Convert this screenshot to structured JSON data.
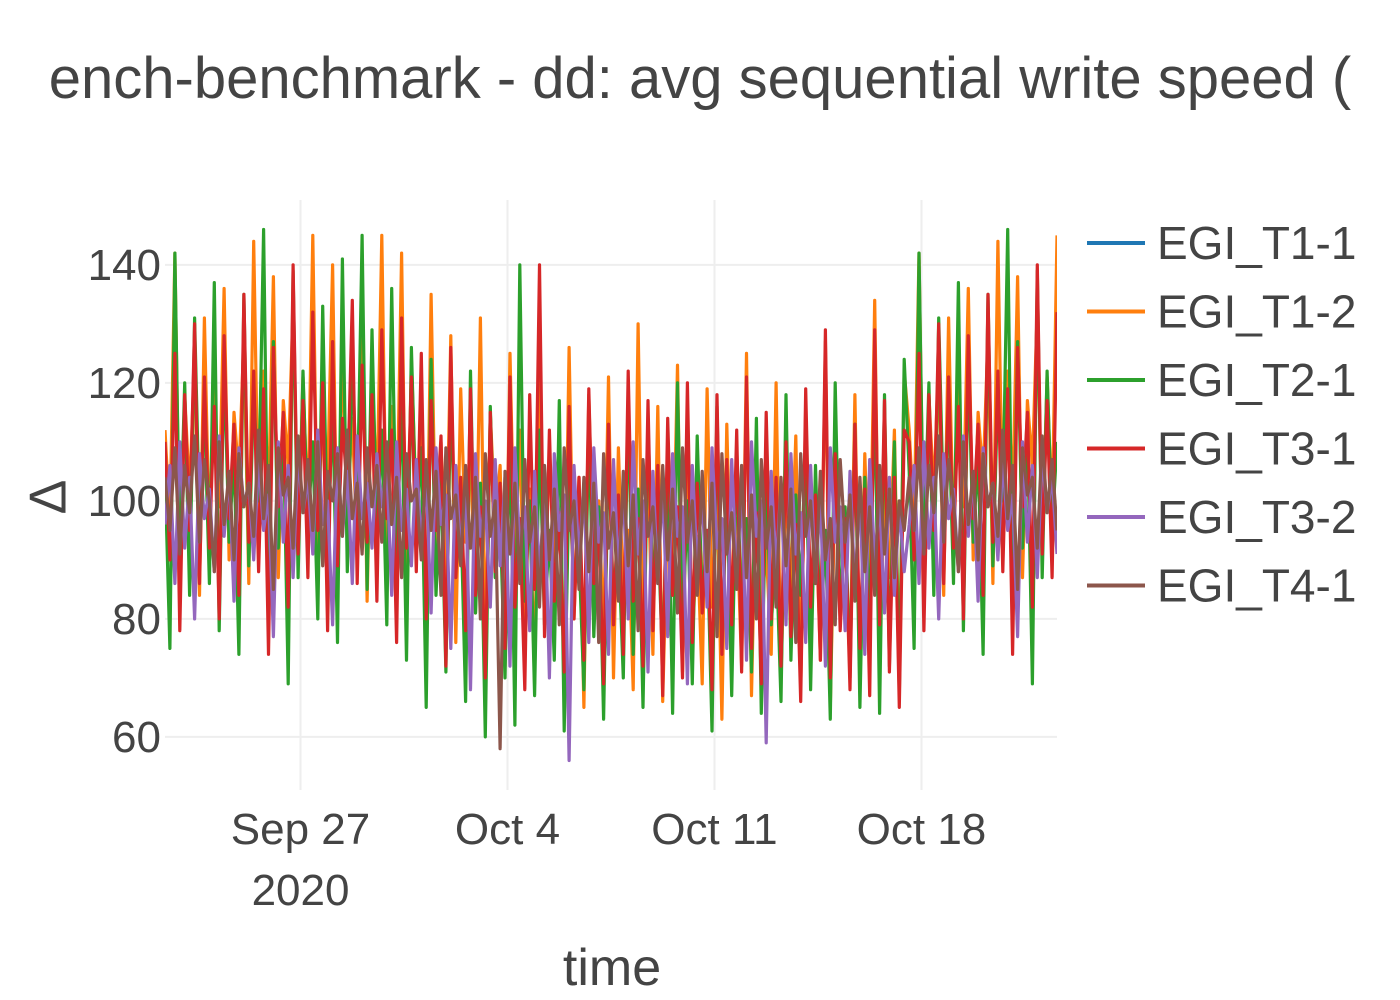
{
  "chart_data": {
    "type": "line",
    "title": "ench-benchmark - dd: avg sequential write speed (",
    "xlabel": "time",
    "ylabel": "Δ",
    "x_ticks": [
      "Sep 27",
      "Oct 4",
      "Oct 11",
      "Oct 18"
    ],
    "x_tick_year": "2020",
    "x_tick_dates": [
      "2020-09-27",
      "2020-10-04",
      "2020-10-11",
      "2020-10-18"
    ],
    "xlim": [
      "2020-09-22T10:00",
      "2020-10-22T14:00"
    ],
    "y_ticks": [
      60,
      80,
      100,
      120,
      140
    ],
    "ylim": [
      51,
      151
    ],
    "grid": true,
    "legend_position": "right",
    "sample_interval_hours": 4,
    "series": [
      {
        "name": "EGI_T1-1",
        "color": "#1f77b4",
        "visible_values": false,
        "values": [
          100,
          101,
          99,
          100,
          102,
          98,
          100,
          101,
          99,
          100,
          101,
          100
        ]
      },
      {
        "name": "EGI_T1-2",
        "color": "#ff7f0e",
        "values": [
          112,
          96,
          142,
          88,
          118,
          101,
          125,
          84,
          131,
          93,
          120,
          99,
          136,
          90,
          115,
          104,
          128,
          86,
          144,
          95,
          122,
          100,
          138,
          87,
          117,
          106,
          133,
          92,
          121,
          97,
          145,
          89,
          119,
          103,
          140,
          85,
          126,
          98,
          114,
          91,
          137,
          83,
          123,
          100,
          145,
          88,
          116,
          94,
          142,
          82,
          124,
          99,
          113,
          79,
          135,
          90,
          110,
          86,
          128,
          76,
          119,
          93,
          108,
          81,
          131,
          74,
          115,
          96,
          106,
          72,
          125,
          87,
          112,
          78,
          102,
          69,
          128,
          84,
          108,
          90,
          98,
          73,
          126,
          80,
          104,
          65,
          118,
          86,
          100,
          77,
          121,
          70,
          109,
          83,
          95,
          68,
          130,
          79,
          105,
          74,
          116,
          66,
          99,
          84,
          123,
          71,
          108,
          76,
          94,
          69,
          119,
          82,
          101,
          63,
          113,
          78,
          97,
          72,
          125,
          67,
          106,
          81,
          92,
          74,
          120,
          70,
          103,
          85,
          111,
          68,
          116,
          77,
          99,
          73,
          127,
          65,
          104,
          80,
          95,
          71,
          118,
          69,
          108,
          82,
          134,
          75,
          101,
          87,
          112,
          70,
          122
        ]
      },
      {
        "name": "EGI_T2-1",
        "color": "#2ca02c",
        "values": [
          105,
          75,
          142,
          90,
          120,
          84,
          131,
          97,
          116,
          86,
          137,
          78,
          124,
          93,
          108,
          74,
          135,
          89,
          119,
          100,
          146,
          83,
          127,
          92,
          113,
          69,
          139,
          87,
          122,
          95,
          110,
          80,
          133,
          91,
          117,
          76,
          141,
          88,
          125,
          98,
          145,
          85,
          129,
          94,
          112,
          79,
          136,
          90,
          118,
          73,
          126,
          96,
          109,
          65,
          124,
          84,
          104,
          71,
          119,
          88,
          99,
          66,
          122,
          81,
          103,
          60,
          116,
          87,
          97,
          70,
          113,
          62,
          140,
          83,
          100,
          67,
          112,
          79,
          95,
          73,
          117,
          61,
          104,
          85,
          91,
          68,
          114,
          77,
          99,
          63,
          110,
          82,
          93,
          70,
          118,
          74,
          102,
          65,
          113,
          86,
          96,
          72,
          108,
          64,
          120,
          78,
          100,
          69,
          111,
          83,
          94,
          61,
          116,
          75,
          103,
          67,
          109,
          80,
          97,
          71,
          114,
          64,
          105,
          79,
          92,
          66,
          118,
          73,
          101,
          84,
          112,
          68,
          106,
          76,
          95,
          63,
          120,
          80,
          99,
          70,
          113,
          65,
          104,
          78,
          120,
          64,
          118,
          72,
          110,
          67,
          124
        ]
      },
      {
        "name": "EGI_T3-1",
        "color": "#d62728",
        "values": [
          110,
          90,
          125,
          78,
          118,
          95,
          130,
          86,
          121,
          92,
          116,
          80,
          128,
          97,
          113,
          84,
          135,
          93,
          122,
          88,
          119,
          74,
          126,
          99,
          115,
          82,
          140,
          91,
          117,
          87,
          132,
          95,
          120,
          78,
          127,
          89,
          114,
          101,
          134,
          86,
          123,
          93,
          118,
          83,
          129,
          97,
          112,
          76,
          131,
          92,
          121,
          88,
          125,
          80,
          117,
          95,
          111,
          72,
          126,
          87,
          104,
          78,
          119,
          84,
          99,
          70,
          115,
          88,
          103,
          75,
          121,
          82,
          97,
          68,
          118,
          85,
          140,
          77,
          112,
          83,
          98,
          71,
          116,
          80,
          104,
          73,
          119,
          86,
          95,
          69,
          113,
          79,
          101,
          74,
          122,
          83,
          97,
          72,
          117,
          78,
          106,
          67,
          114,
          84,
          99,
          70,
          120,
          76,
          103,
          81,
          95,
          68,
          118,
          74,
          107,
          79,
          112,
          71,
          121,
          75,
          98,
          69,
          115,
          80,
          104,
          72,
          110,
          77,
          96,
          66,
          119,
          82,
          101,
          73,
          129,
          70,
          108,
          78,
          97,
          68,
          113,
          75,
          102,
          67,
          129,
          79,
          117,
          71,
          104,
          65,
          112
        ]
      },
      {
        "name": "EGI_T3-2",
        "color": "#9467bd",
        "values": [
          96,
          106,
          86,
          110,
          92,
          104,
          80,
          108,
          97,
          102,
          88,
          111,
          94,
          105,
          83,
          109,
          99,
          103,
          90,
          107,
          95,
          101,
          77,
          110,
          93,
          106,
          87,
          108,
          98,
          104,
          91,
          112,
          96,
          100,
          79,
          109,
          94,
          105,
          86,
          111,
          97,
          103,
          92,
          108,
          99,
          106,
          84,
          110,
          95,
          102,
          89,
          107,
          93,
          104,
          81,
          109,
          96,
          101,
          75,
          106,
          91,
          103,
          68,
          108,
          94,
          100,
          82,
          107,
          89,
          104,
          72,
          109,
          92,
          99,
          78,
          105,
          87,
          102,
          70,
          108,
          95,
          101,
          56,
          106,
          90,
          103,
          76,
          109,
          93,
          98,
          74,
          107,
          88,
          102,
          80,
          110,
          91,
          100,
          71,
          105,
          86,
          103,
          77,
          108,
          94,
          99,
          69,
          106,
          89,
          101,
          82,
          109,
          92,
          97,
          75,
          107,
          87,
          102,
          73,
          110,
          94,
          100,
          59,
          105,
          88,
          103,
          79,
          108,
          91,
          98,
          76,
          106,
          86,
          101,
          72,
          109,
          93,
          99,
          78,
          105,
          85,
          102,
          74,
          107,
          90,
          100,
          81,
          104,
          84,
          99,
          88
        ]
      },
      {
        "name": "EGI_T4-1",
        "color": "#8c564b",
        "values": [
          104,
          95,
          109,
          91,
          106,
          98,
          111,
          93,
          107,
          100,
          88,
          110,
          96,
          105,
          90,
          108,
          99,
          103,
          94,
          112,
          97,
          106,
          85,
          109,
          101,
          104,
          92,
          111,
          98,
          107,
          95,
          110,
          89,
          105,
          100,
          108,
          94,
          112,
          97,
          103,
          91,
          109,
          99,
          106,
          93,
          110,
          96,
          104,
          87,
          108,
          100,
          102,
          90,
          107,
          95,
          105,
          84,
          109,
          97,
          101,
          89,
          106,
          92,
          104,
          80,
          108,
          94,
          100,
          58,
          105,
          91,
          103,
          86,
          107,
          93,
          99,
          82,
          106,
          90,
          102,
          79,
          109,
          95,
          100,
          85,
          104,
          88,
          103,
          76,
          108,
          92,
          98,
          83,
          105,
          89,
          101,
          78,
          107,
          94,
          99,
          86,
          106,
          90,
          102,
          81,
          109,
          93,
          100,
          84,
          105,
          88,
          103,
          77,
          108,
          91,
          98,
          85,
          106,
          87,
          101,
          80,
          107,
          92,
          99,
          82,
          104,
          89,
          102,
          76,
          108,
          94,
          100,
          86,
          105,
          90,
          97,
          79,
          107,
          93,
          101,
          83,
          104,
          88,
          99,
          84,
          106,
          91,
          102,
          87,
          100,
          95
        ]
      }
    ]
  }
}
